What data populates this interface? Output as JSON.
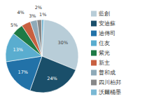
{
  "chart_data": {
    "type": "pie",
    "categories": [
      "藍創",
      "安迪蘇",
      "迪傳司",
      "住友",
      "紫光",
      "新主",
      "普和成",
      "四川柏邦",
      "沃爾桶墨"
    ],
    "values": [
      30,
      24,
      17,
      13,
      5,
      4,
      3,
      2,
      1
    ],
    "value_labels": [
      "30%",
      "24%",
      "17%",
      "13%",
      "5%",
      "4%",
      "3%",
      "2%",
      "1%"
    ],
    "colors": [
      "#b8cdd8",
      "#1a4f6a",
      "#2272a8",
      "#5aadcf",
      "#1e7a45",
      "#c86040",
      "#8faab8",
      "#888888",
      "#7ab8d4"
    ],
    "data_labels": true,
    "legend": "right"
  }
}
